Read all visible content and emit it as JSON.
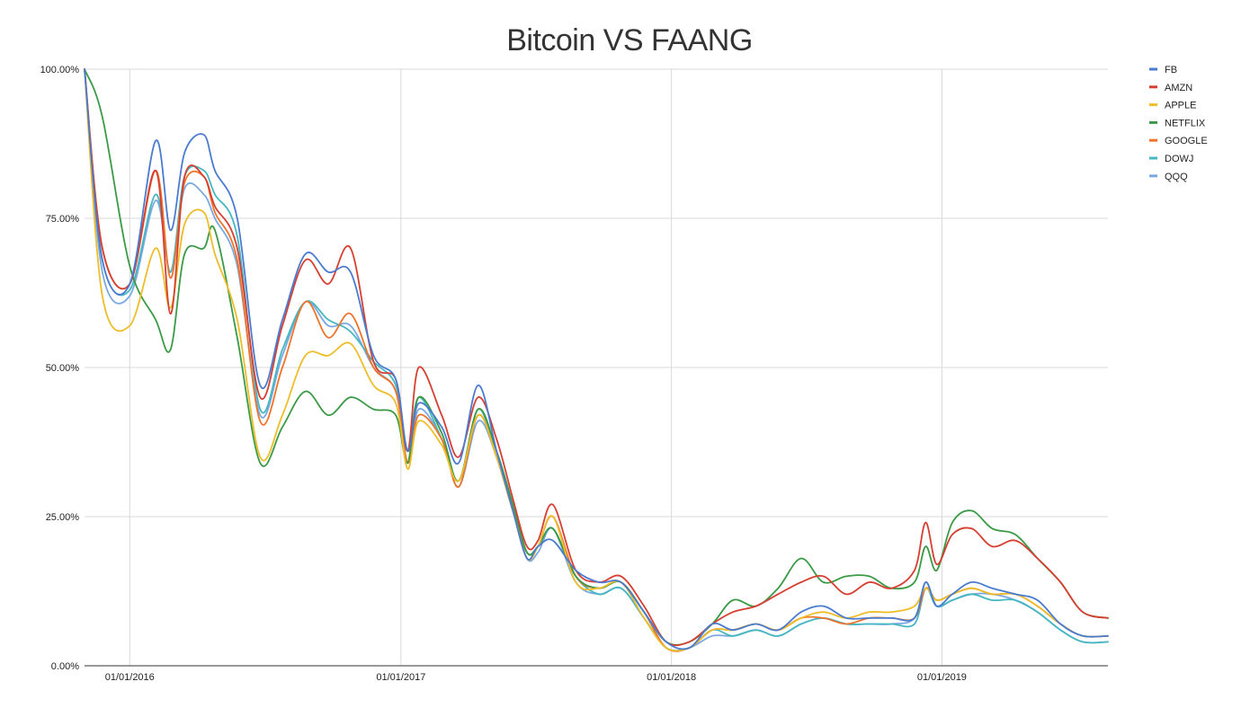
{
  "chart_data": {
    "type": "line",
    "title": "Bitcoin VS FAANG",
    "xlabel": "",
    "ylabel": "",
    "ylim": [
      0,
      100
    ],
    "xlim": [
      "2015-11-01",
      "2019-08-13"
    ],
    "y_ticks": [
      {
        "value": 0,
        "label": "0.00%"
      },
      {
        "value": 25,
        "label": "25.00%"
      },
      {
        "value": 50,
        "label": "50.00%"
      },
      {
        "value": 75,
        "label": "75.00%"
      },
      {
        "value": 100,
        "label": "100.00%"
      }
    ],
    "x_ticks": [
      {
        "value": "2016-01-01",
        "label": "01/01/2016"
      },
      {
        "value": "2017-01-01",
        "label": "01/01/2017"
      },
      {
        "value": "2018-01-01",
        "label": "01/01/2018"
      },
      {
        "value": "2019-01-01",
        "label": "01/01/2019"
      }
    ],
    "grid": true,
    "legend_position": "right",
    "x": [
      "2015-11-01",
      "2015-11-25",
      "2016-01-01",
      "2016-02-05",
      "2016-02-25",
      "2016-03-15",
      "2016-04-10",
      "2016-04-25",
      "2016-05-25",
      "2016-06-25",
      "2016-07-25",
      "2016-08-25",
      "2016-09-25",
      "2016-10-25",
      "2016-11-25",
      "2016-12-25",
      "2017-01-10",
      "2017-01-25",
      "2017-02-25",
      "2017-03-20",
      "2017-04-15",
      "2017-05-10",
      "2017-06-01",
      "2017-06-20",
      "2017-07-05",
      "2017-07-25",
      "2017-08-25",
      "2017-09-25",
      "2017-10-25",
      "2017-11-25",
      "2017-12-25",
      "2018-01-25",
      "2018-02-25",
      "2018-03-25",
      "2018-04-25",
      "2018-05-25",
      "2018-06-25",
      "2018-07-25",
      "2018-08-25",
      "2018-09-25",
      "2018-10-25",
      "2018-11-25",
      "2018-12-10",
      "2018-12-25",
      "2019-01-15",
      "2019-02-10",
      "2019-03-10",
      "2019-04-10",
      "2019-05-10",
      "2019-06-10",
      "2019-07-10",
      "2019-08-13"
    ],
    "series": [
      {
        "name": "FB",
        "color": "#4a7bd0",
        "values": [
          100,
          68,
          64,
          88,
          73,
          86,
          89,
          83,
          75,
          47,
          58,
          69,
          66,
          66,
          52,
          48,
          36,
          44,
          40,
          34,
          47,
          36,
          26,
          18,
          20,
          21,
          16,
          14,
          14,
          9,
          4,
          3,
          7,
          6,
          7,
          6,
          9,
          10,
          8,
          8,
          8,
          8,
          14,
          10,
          12,
          14,
          13,
          12,
          11,
          7,
          5,
          5
        ]
      },
      {
        "name": "AMZN",
        "color": "#d63f31",
        "values": [
          100,
          70,
          64,
          83,
          59,
          82,
          82,
          77,
          70,
          45,
          57,
          68,
          64,
          70,
          51,
          48,
          36,
          50,
          42,
          35,
          45,
          38,
          28,
          20,
          21,
          27,
          16,
          14,
          15,
          10,
          4,
          4,
          7,
          9,
          10,
          12,
          14,
          15,
          12,
          14,
          13,
          16,
          24,
          17,
          22,
          23,
          20,
          21,
          18,
          14,
          9,
          8
        ]
      },
      {
        "name": "APPLE",
        "color": "#eebd2a",
        "values": [
          100,
          62,
          57,
          70,
          60,
          74,
          76,
          69,
          58,
          35,
          42,
          52,
          52,
          54,
          47,
          44,
          33,
          41,
          37,
          31,
          42,
          35,
          26,
          18,
          20,
          25,
          14,
          13,
          14,
          8,
          3,
          3,
          6,
          6,
          7,
          6,
          8,
          9,
          8,
          9,
          9,
          10,
          13,
          11,
          12,
          13,
          12,
          12,
          10,
          7,
          5,
          5
        ]
      },
      {
        "name": "NETFLIX",
        "color": "#3a9a46",
        "values": [
          100,
          92,
          67,
          58,
          53,
          69,
          70,
          73,
          55,
          34,
          40,
          46,
          42,
          45,
          43,
          42,
          34,
          45,
          39,
          31,
          43,
          36,
          27,
          19,
          20,
          23,
          15,
          13,
          14,
          9,
          4,
          4,
          7,
          11,
          10,
          13,
          18,
          14,
          15,
          15,
          13,
          14,
          20,
          16,
          24,
          26,
          23,
          22,
          18,
          14,
          9,
          8
        ]
      },
      {
        "name": "GOOGLE",
        "color": "#f0732a",
        "values": [
          100,
          70,
          64,
          83,
          65,
          81,
          82,
          76,
          68,
          41,
          50,
          61,
          55,
          59,
          50,
          46,
          34,
          42,
          38,
          30,
          42,
          35,
          26,
          19,
          20,
          25,
          15,
          13,
          14,
          9,
          3,
          3,
          6,
          6,
          7,
          6,
          8,
          8,
          7,
          8,
          8,
          8,
          13,
          11,
          12,
          13,
          12,
          12,
          10,
          7,
          5,
          5
        ]
      },
      {
        "name": "DOWJ",
        "color": "#45b7c1",
        "values": [
          100,
          68,
          63,
          79,
          66,
          82,
          83,
          79,
          72,
          43,
          53,
          61,
          58,
          56,
          51,
          47,
          36,
          45,
          38,
          31,
          43,
          35,
          26,
          19,
          20,
          23,
          15,
          12,
          13,
          8,
          3,
          3,
          6,
          5,
          6,
          5,
          7,
          8,
          7,
          7,
          7,
          7,
          13,
          10,
          11,
          12,
          11,
          11,
          9,
          6,
          4,
          4
        ]
      },
      {
        "name": "QQQ",
        "color": "#7aa9e2",
        "values": [
          100,
          66,
          62,
          78,
          66,
          80,
          79,
          75,
          67,
          42,
          52,
          61,
          57,
          57,
          50,
          46,
          34,
          43,
          38,
          30,
          41,
          35,
          26,
          18,
          19,
          23,
          14,
          12,
          13,
          8,
          3,
          3,
          5,
          5,
          6,
          5,
          7,
          8,
          7,
          7,
          7,
          8,
          14,
          10,
          11,
          12,
          12,
          11,
          9,
          6,
          4,
          4
        ]
      }
    ]
  }
}
